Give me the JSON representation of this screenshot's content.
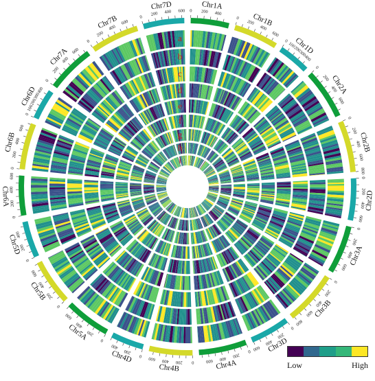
{
  "chromosomes": [
    {
      "name": "Chr1A",
      "len": 594,
      "color": "#0f9e3a"
    },
    {
      "name": "Chr1B",
      "len": 689,
      "color": "#d4d92a"
    },
    {
      "name": "Chr1D",
      "len": 495,
      "color": "#1aa8a8"
    },
    {
      "name": "Chr2A",
      "len": 780,
      "color": "#0f9e3a"
    },
    {
      "name": "Chr2B",
      "len": 801,
      "color": "#d4d92a"
    },
    {
      "name": "Chr2D",
      "len": 651,
      "color": "#1aa8a8"
    },
    {
      "name": "Chr3A",
      "len": 750,
      "color": "#0f9e3a"
    },
    {
      "name": "Chr3B",
      "len": 830,
      "color": "#d4d92a"
    },
    {
      "name": "Chr3D",
      "len": 615,
      "color": "#1aa8a8"
    },
    {
      "name": "Chr4A",
      "len": 744,
      "color": "#0f9e3a"
    },
    {
      "name": "Chr4B",
      "len": 673,
      "color": "#d4d92a"
    },
    {
      "name": "Chr4D",
      "len": 509,
      "color": "#1aa8a8"
    },
    {
      "name": "Chr5A",
      "len": 709,
      "color": "#0f9e3a"
    },
    {
      "name": "Chr5B",
      "len": 713,
      "color": "#d4d92a"
    },
    {
      "name": "Chr5D",
      "len": 566,
      "color": "#1aa8a8"
    },
    {
      "name": "Chr6A",
      "len": 618,
      "color": "#0f9e3a"
    },
    {
      "name": "Chr6B",
      "len": 720,
      "color": "#d4d92a"
    },
    {
      "name": "Chr6D",
      "len": 473,
      "color": "#1aa8a8"
    },
    {
      "name": "Chr7A",
      "len": 736,
      "color": "#0f9e3a"
    },
    {
      "name": "Chr7B",
      "len": 750,
      "color": "#d4d92a"
    },
    {
      "name": "Chr7D",
      "len": 638,
      "color": "#1aa8a8"
    }
  ],
  "tick_labels": [
    "0",
    "100",
    "200",
    "300",
    "400",
    "500",
    "600",
    "700",
    "800"
  ],
  "track_letters": [
    "a",
    "b",
    "c",
    "d",
    "e",
    "f",
    "g",
    "h",
    "i"
  ],
  "heat_palette": [
    "#440154",
    "#3b528b",
    "#21908d",
    "#5dc863",
    "#fde725"
  ],
  "legend": {
    "low": "Low",
    "high": "High",
    "colors": [
      "#440154",
      "#31688e",
      "#1f9e89",
      "#35b779",
      "#fde725"
    ]
  },
  "colors": {
    "letter": "#d11a1a",
    "tick": "#333333"
  }
}
